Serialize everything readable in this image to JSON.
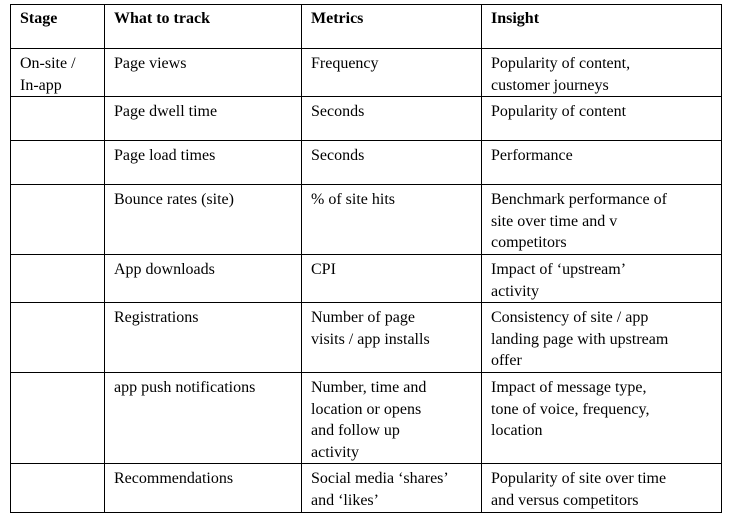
{
  "table": {
    "header": [
      "Stage",
      "What to track",
      "Metrics",
      "Insight"
    ],
    "rows": [
      {
        "stage": [
          "On-site /",
          "In-app"
        ],
        "track": [
          "Page views"
        ],
        "metrics": [
          "Frequency"
        ],
        "insight": [
          "Popularity of content,",
          "customer journeys"
        ]
      },
      {
        "track": [
          "Page dwell time"
        ],
        "metrics": [
          "Seconds"
        ],
        "insight": [
          "Popularity of content"
        ]
      },
      {
        "track": [
          "Page load times"
        ],
        "metrics": [
          "Seconds"
        ],
        "insight": [
          "Performance"
        ]
      },
      {
        "track": [
          "Bounce rates  (site)"
        ],
        "metrics": [
          "% of site hits"
        ],
        "insight": [
          "Benchmark performance  of",
          "site over time and v",
          "competitors"
        ]
      },
      {
        "track": [
          "App downloads"
        ],
        "metrics": [
          "CPI"
        ],
        "insight": [
          "Impact of ‘upstream’",
          "activity"
        ]
      },
      {
        "track": [
          "Registrations"
        ],
        "metrics": [
          "Number of page",
          "visits / app installs"
        ],
        "insight": [
          "Consistency of site / app",
          "landing page with upstream",
          "offer"
        ]
      },
      {
        "track": [
          "app push notifications"
        ],
        "metrics": [
          "Number, time and",
          "location or opens",
          "and follow up",
          "activity"
        ],
        "insight": [
          "Impact of message type,",
          "tone of voice, frequency,",
          "location"
        ]
      },
      {
        "track": [
          "Recommendations"
        ],
        "metrics": [
          "Social media ‘shares’",
          "and ‘likes’"
        ],
        "insight": [
          "Popularity of site over time",
          "and versus competitors"
        ]
      }
    ]
  }
}
